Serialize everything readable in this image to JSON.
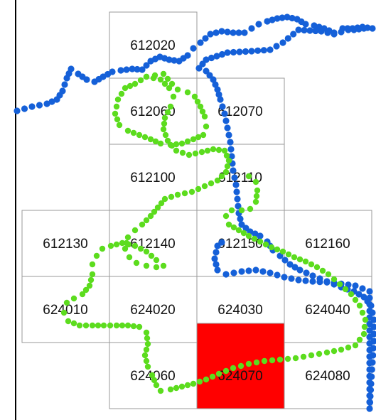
{
  "map": {
    "colors": {
      "background": "#ffffff",
      "grid_line": "#9a9a9a",
      "left_axis": "#000000",
      "highlight_tile": "#ff0000",
      "blue_route": "#1560d8",
      "green_route": "#5cdc1e"
    },
    "tiles": [
      {
        "id": "t612020",
        "label": "612020",
        "highlighted": false
      },
      {
        "id": "t612060",
        "label": "612060",
        "highlighted": false
      },
      {
        "id": "t612070",
        "label": "612070",
        "highlighted": false
      },
      {
        "id": "t612100",
        "label": "612100",
        "highlighted": false
      },
      {
        "id": "t612110",
        "label": "612110",
        "highlighted": false
      },
      {
        "id": "t612130",
        "label": "612130",
        "highlighted": false
      },
      {
        "id": "t612140",
        "label": "612140",
        "highlighted": false
      },
      {
        "id": "t612150",
        "label": "612150",
        "highlighted": false
      },
      {
        "id": "t612160",
        "label": "612160",
        "highlighted": false
      },
      {
        "id": "t624010",
        "label": "624010",
        "highlighted": false
      },
      {
        "id": "t624020",
        "label": "624020",
        "highlighted": false
      },
      {
        "id": "t624030",
        "label": "624030",
        "highlighted": false
      },
      {
        "id": "t624040",
        "label": "624040",
        "highlighted": false
      },
      {
        "id": "t624060",
        "label": "624060",
        "highlighted": false
      },
      {
        "id": "t624070",
        "label": "624070",
        "highlighted": true
      },
      {
        "id": "t624080",
        "label": "624080",
        "highlighted": false
      }
    ]
  }
}
